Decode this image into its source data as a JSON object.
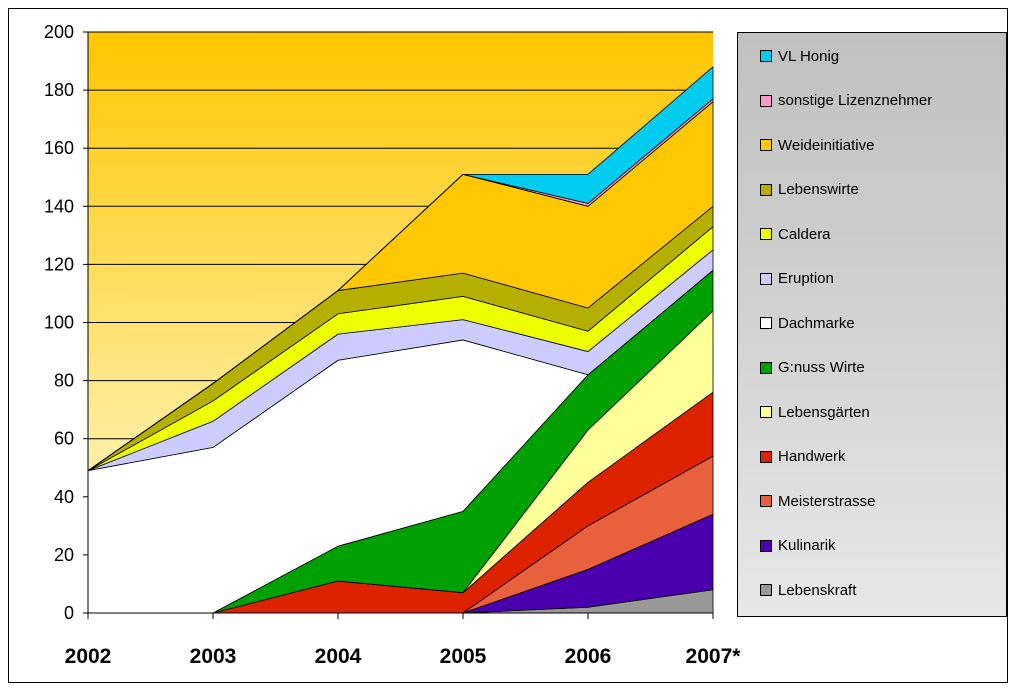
{
  "chart_data": {
    "type": "area",
    "stacked": true,
    "categories": [
      "2002",
      "2003",
      "2004",
      "2005",
      "2006",
      "2007*"
    ],
    "ylim": [
      0,
      200
    ],
    "yticks": [
      "0",
      "20",
      "40",
      "60",
      "80",
      "100",
      "120",
      "140",
      "160",
      "180",
      "200"
    ],
    "grid": true,
    "legend_position": "right",
    "series": [
      {
        "name": "Lebenskraft",
        "color": "#999999",
        "values": [
          0,
          0,
          0,
          0,
          2,
          8
        ]
      },
      {
        "name": "Kulinarik",
        "color": "#4b00b0",
        "values": [
          0,
          0,
          0,
          0,
          13,
          26
        ]
      },
      {
        "name": "Meisterstrasse",
        "color": "#e8603c",
        "values": [
          0,
          0,
          0,
          0,
          15,
          20
        ]
      },
      {
        "name": "Handwerk",
        "color": "#dd2200",
        "values": [
          0,
          0,
          11,
          7,
          15,
          22
        ]
      },
      {
        "name": "Lebensgärten",
        "color": "#ffff99",
        "values": [
          0,
          0,
          0,
          0,
          18,
          28
        ]
      },
      {
        "name": "G:nuss Wirte",
        "color": "#00a000",
        "values": [
          0,
          0,
          12,
          28,
          19,
          14
        ]
      },
      {
        "name": "Dachmarke",
        "color": "#ffffff",
        "values": [
          49,
          57,
          64,
          59,
          0,
          0
        ]
      },
      {
        "name": "Eruption",
        "color": "#ccccff",
        "values": [
          0,
          9,
          9,
          7,
          8,
          7
        ]
      },
      {
        "name": "Caldera",
        "color": "#eeff00",
        "values": [
          0,
          7,
          7,
          8,
          7,
          8
        ]
      },
      {
        "name": "Lebenswirte",
        "color": "#b5b000",
        "values": [
          0,
          6,
          8,
          8,
          8,
          7
        ]
      },
      {
        "name": "Weideinitiative",
        "color": "#ffc800",
        "values": [
          0,
          0,
          0,
          34,
          35,
          36
        ]
      },
      {
        "name": "sonstige Lizenznehmer",
        "color": "#ff99cc",
        "values": [
          0,
          0,
          0,
          0,
          1,
          1
        ]
      },
      {
        "name": "VL Honig",
        "color": "#00ccf0",
        "values": [
          0,
          0,
          0,
          0,
          10,
          11
        ]
      }
    ]
  }
}
